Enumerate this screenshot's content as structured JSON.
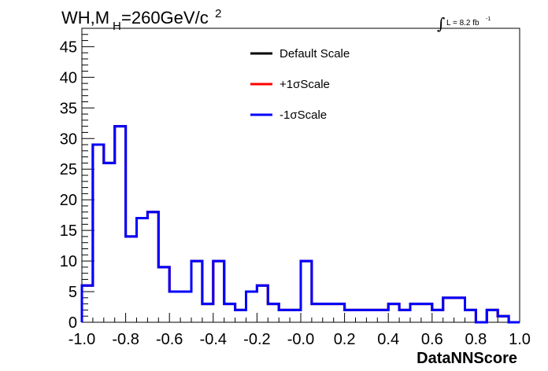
{
  "chart_data": {
    "type": "line",
    "title_main": "WH,M",
    "title_sub": "H",
    "title_value": "=260GeV/c",
    "title_sup": "2",
    "lumi_label": "L = 8.2 fb",
    "lumi_sup": "-1",
    "xlabel": "DataNNScore",
    "ylabel": "",
    "xlim": [
      -1.0,
      1.0
    ],
    "ylim": [
      0,
      48
    ],
    "xticks": [
      "-1.0",
      "-0.8",
      "-0.6",
      "-0.4",
      "-0.2",
      "-0.0",
      "0.2",
      "0.4",
      "0.6",
      "0.8",
      "1.0"
    ],
    "yticks": [
      "0",
      "5",
      "10",
      "15",
      "20",
      "25",
      "30",
      "35",
      "40",
      "45"
    ],
    "bin_edges": [
      -1.0,
      -0.95,
      -0.9,
      -0.85,
      -0.8,
      -0.75,
      -0.7,
      -0.65,
      -0.6,
      -0.55,
      -0.5,
      -0.45,
      -0.4,
      -0.35,
      -0.3,
      -0.25,
      -0.2,
      -0.15,
      -0.1,
      -0.05,
      0.0,
      0.05,
      0.1,
      0.15,
      0.2,
      0.25,
      0.3,
      0.35,
      0.4,
      0.45,
      0.5,
      0.55,
      0.6,
      0.65,
      0.7,
      0.75,
      0.8,
      0.85,
      0.9,
      0.95,
      1.0
    ],
    "series": [
      {
        "name": "Default Scale",
        "color": "#000000",
        "values": [
          6,
          29,
          26,
          32,
          14,
          17,
          18,
          9,
          5,
          5,
          10,
          3,
          10,
          3,
          2,
          5,
          6,
          3,
          2,
          2,
          10,
          3,
          3,
          3,
          2,
          2,
          2,
          2,
          3,
          2,
          3,
          3,
          2,
          4,
          4,
          2,
          0,
          2,
          1,
          0
        ]
      },
      {
        "name": "+1σScale",
        "color": "#ff0000",
        "values": [
          6,
          29,
          26,
          32,
          14,
          17,
          18,
          9,
          5,
          5,
          10,
          3,
          10,
          3,
          2,
          5,
          6,
          3,
          2,
          2,
          10,
          3,
          3,
          3,
          2,
          2,
          2,
          2,
          3,
          2,
          3,
          3,
          2,
          4,
          4,
          2,
          0,
          2,
          1,
          0
        ]
      },
      {
        "name": "-1σScale",
        "color": "#0000ff",
        "values": [
          6,
          29,
          26,
          32,
          14,
          17,
          18,
          9,
          5,
          5,
          10,
          3,
          10,
          3,
          2,
          5,
          6,
          3,
          2,
          2,
          10,
          3,
          3,
          3,
          2,
          2,
          2,
          2,
          3,
          2,
          3,
          3,
          2,
          4,
          4,
          2,
          0,
          2,
          1,
          0
        ]
      }
    ]
  }
}
